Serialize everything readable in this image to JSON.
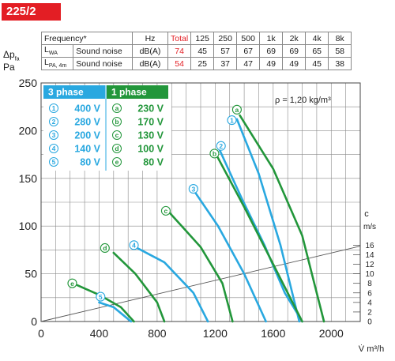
{
  "model": "225/2",
  "noise_table": {
    "freq_label": "Frequency*",
    "freq_unit": "Hz",
    "total_label": "Total",
    "bands": [
      "125",
      "250",
      "500",
      "1k",
      "2k",
      "4k",
      "8k"
    ],
    "rows": [
      {
        "name": "L",
        "sub": "WA",
        "desc": "Sound noise",
        "unit": "dB(A)",
        "total": "74",
        "values": [
          "45",
          "57",
          "67",
          "69",
          "69",
          "65",
          "58"
        ]
      },
      {
        "name": "L",
        "sub": "PA, 4m",
        "desc": "Sound noise",
        "unit": "dB(A)",
        "total": "54",
        "values": [
          "25",
          "37",
          "47",
          "49",
          "49",
          "45",
          "38"
        ]
      }
    ]
  },
  "y_axis": {
    "symbol": "Δp",
    "symbol_sub": "fa",
    "unit": "Pa"
  },
  "x_axis": {
    "unit": "V̇ m³/h"
  },
  "density_note": "ρ = 1,20 kg/m³",
  "velocity_axis": {
    "label": "c",
    "unit": "m/s",
    "ticks": [
      0,
      2,
      4,
      6,
      8,
      10,
      12,
      14,
      16
    ]
  },
  "legend": {
    "three_phase": {
      "title": "3 phase",
      "color": "#29a8e0",
      "items": [
        {
          "mark": "1",
          "voltage": "400 V"
        },
        {
          "mark": "2",
          "voltage": "280 V"
        },
        {
          "mark": "3",
          "voltage": "200 V"
        },
        {
          "mark": "4",
          "voltage": "140 V"
        },
        {
          "mark": "5",
          "voltage": "80 V"
        }
      ]
    },
    "one_phase": {
      "title": "1 phase",
      "color": "#22963a",
      "items": [
        {
          "mark": "a",
          "voltage": "230 V"
        },
        {
          "mark": "b",
          "voltage": "170 V"
        },
        {
          "mark": "c",
          "voltage": "130 V"
        },
        {
          "mark": "d",
          "voltage": "100 V"
        },
        {
          "mark": "e",
          "voltage": "80 V"
        }
      ]
    }
  },
  "chart_data": {
    "type": "line",
    "xlim": [
      0,
      2200
    ],
    "ylim": [
      0,
      250
    ],
    "x_ticks": [
      0,
      400,
      800,
      1200,
      1600,
      2000
    ],
    "y_ticks": [
      0,
      50,
      100,
      150,
      200,
      250
    ],
    "grid": true,
    "legend_position": "top-left",
    "series": [
      {
        "name": "1",
        "color": "#29a8e0",
        "x": [
          1350,
          1500,
          1650,
          1780
        ],
        "y": [
          212,
          155,
          80,
          0
        ]
      },
      {
        "name": "2",
        "color": "#29a8e0",
        "x": [
          1230,
          1380,
          1540,
          1680,
          1800
        ],
        "y": [
          180,
          130,
          80,
          30,
          0
        ]
      },
      {
        "name": "3",
        "color": "#29a8e0",
        "x": [
          1050,
          1220,
          1400,
          1550
        ],
        "y": [
          138,
          100,
          50,
          0
        ]
      },
      {
        "name": "4",
        "color": "#29a8e0",
        "x": [
          650,
          850,
          1050,
          1150
        ],
        "y": [
          78,
          62,
          30,
          0
        ]
      },
      {
        "name": "5",
        "color": "#29a8e0",
        "x": [
          400,
          500,
          620
        ],
        "y": [
          20,
          15,
          0
        ]
      },
      {
        "name": "a",
        "color": "#22963a",
        "x": [
          1370,
          1600,
          1800,
          1950
        ],
        "y": [
          216,
          160,
          90,
          0
        ]
      },
      {
        "name": "b",
        "color": "#22963a",
        "x": [
          1200,
          1400,
          1600,
          1800
        ],
        "y": [
          177,
          120,
          60,
          0
        ]
      },
      {
        "name": "c",
        "color": "#22963a",
        "x": [
          880,
          1100,
          1250,
          1320
        ],
        "y": [
          115,
          78,
          40,
          0
        ]
      },
      {
        "name": "d",
        "color": "#22963a",
        "x": [
          500,
          650,
          800,
          850
        ],
        "y": [
          72,
          50,
          20,
          0
        ]
      },
      {
        "name": "e",
        "color": "#22963a",
        "x": [
          250,
          400,
          550,
          640
        ],
        "y": [
          38,
          28,
          15,
          0
        ]
      }
    ],
    "system_line": {
      "x": [
        0,
        2200
      ],
      "y": [
        0,
        79
      ]
    },
    "curve_labels": [
      {
        "mark": "a",
        "x": 1350,
        "y": 222
      },
      {
        "mark": "1",
        "x": 1315,
        "y": 211
      },
      {
        "mark": "2",
        "x": 1240,
        "y": 184
      },
      {
        "mark": "b",
        "x": 1195,
        "y": 176
      },
      {
        "mark": "3",
        "x": 1050,
        "y": 139
      },
      {
        "mark": "c",
        "x": 860,
        "y": 116
      },
      {
        "mark": "4",
        "x": 640,
        "y": 80
      },
      {
        "mark": "d",
        "x": 440,
        "y": 77
      },
      {
        "mark": "5",
        "x": 410,
        "y": 26
      },
      {
        "mark": "e",
        "x": 215,
        "y": 40
      }
    ]
  }
}
